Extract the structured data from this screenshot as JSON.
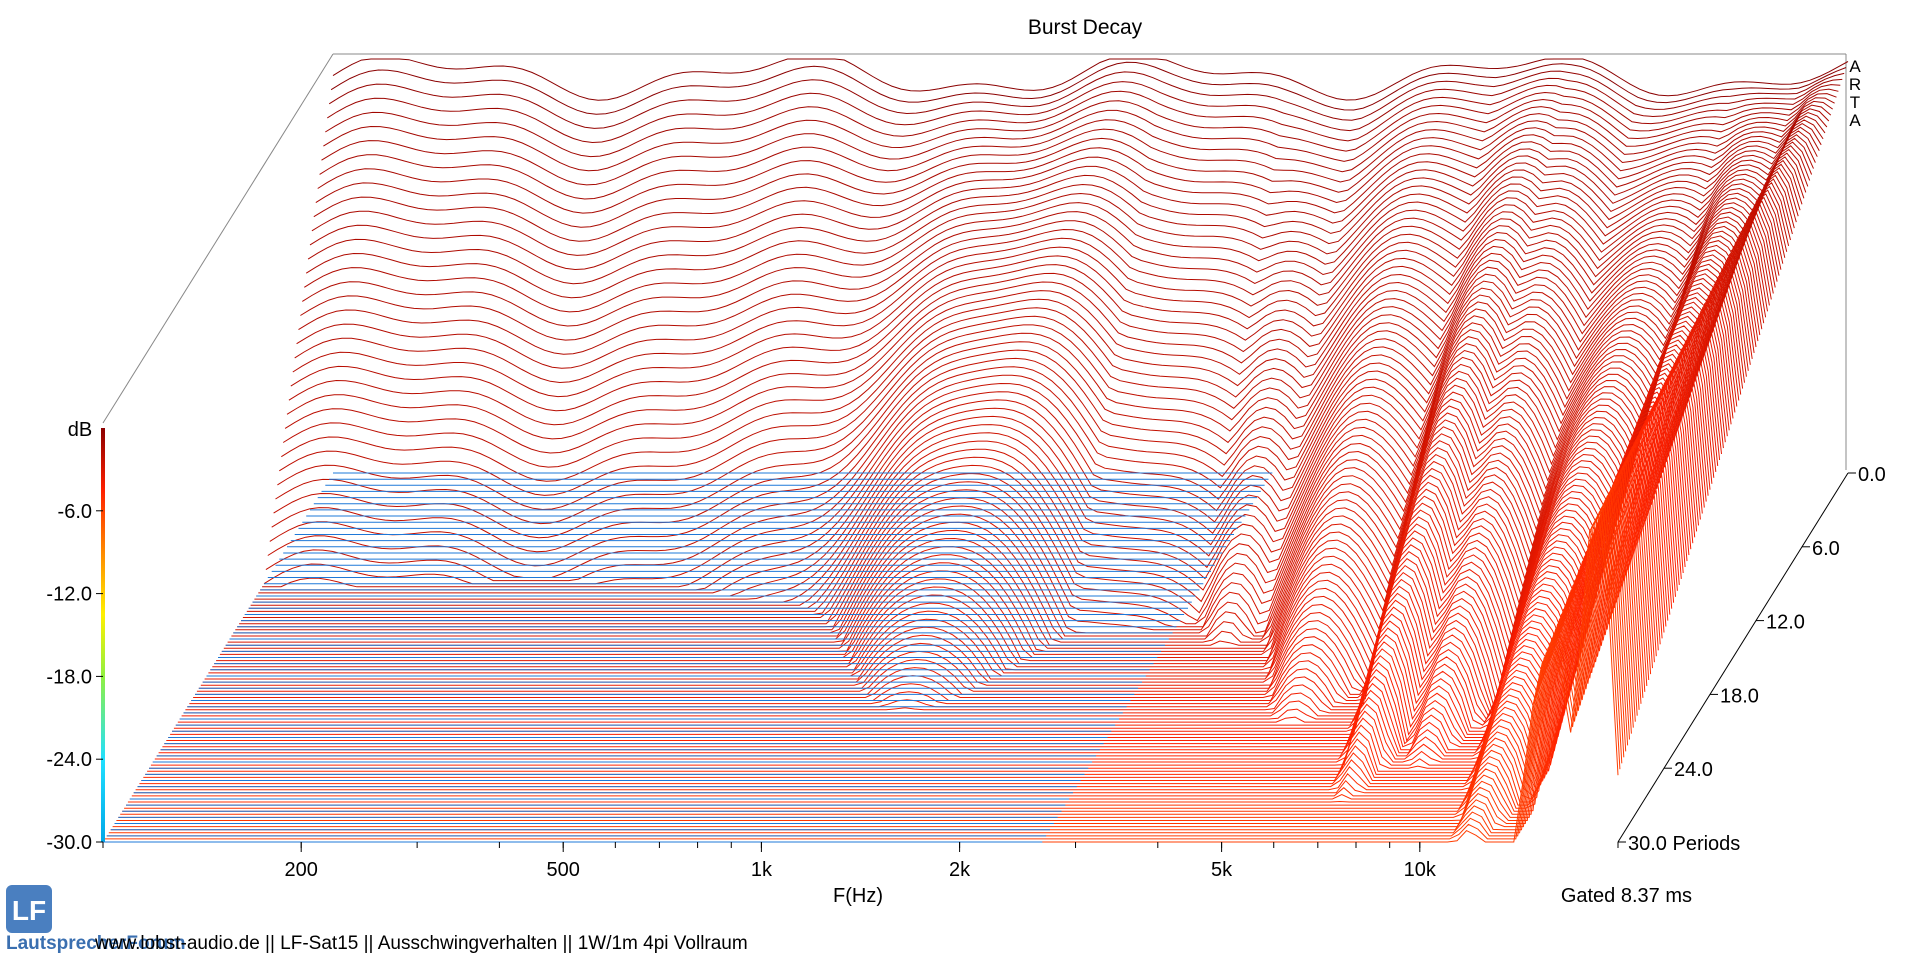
{
  "chart_data": {
    "type": "waterfall",
    "title": "Burst Decay",
    "xlabel": "F(Hz)",
    "zlabel": "dB",
    "z_ticks": [
      "-6.0",
      "-12.0",
      "-18.0",
      "-24.0",
      "-30.0"
    ],
    "z_range": [
      -30,
      0
    ],
    "x_ticks": [
      "200",
      "500",
      "1k",
      "2k",
      "5k",
      "10k"
    ],
    "x_tick_values": [
      200,
      500,
      1000,
      2000,
      5000,
      10000
    ],
    "x_range": [
      100,
      20000
    ],
    "x_scale": "log",
    "y_ticks": [
      "0.0",
      "6.0",
      "12.0",
      "18.0",
      "24.0",
      "30.0 Periods"
    ],
    "y_range": [
      0,
      30
    ],
    "y_unit": "Periods",
    "colormap": [
      "#8b0000",
      "#ff2000",
      "#ff8a00",
      "#fff000",
      "#90f040",
      "#20e0ff",
      "#00a8e8"
    ],
    "gate_note": "Gated 8.37 ms",
    "brand": "ARTA",
    "footer": "www.lobst-audio.de  ||  LF-Sat15  ||  Ausschwingverhalten  ||  1W/1m 4pi Vollraum",
    "logo_text": "LautsprecherForum"
  }
}
